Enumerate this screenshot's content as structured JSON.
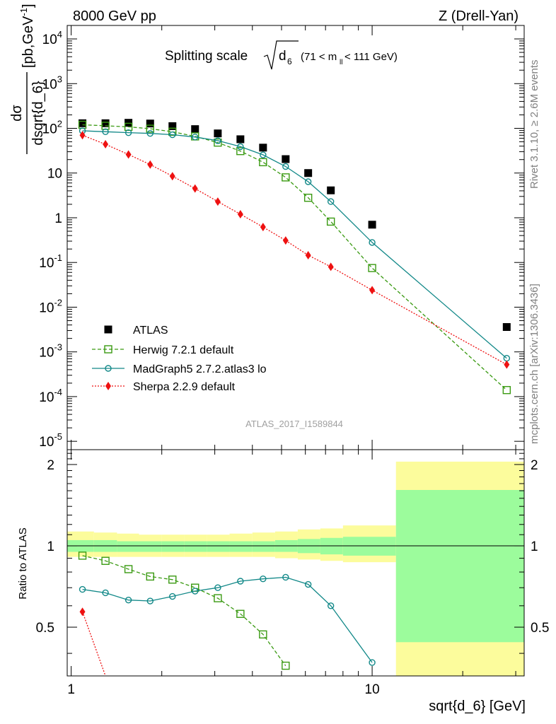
{
  "header": {
    "left": "8000 GeV pp",
    "right": "Z (Drell-Yan)"
  },
  "side_text": {
    "rivet": "Rivet 3.1.10, ≥ 2.6M events",
    "mcplots": "mcplots.cern.ch [arXiv:1306.3436]"
  },
  "chart_data": [
    {
      "type": "scatter",
      "title_main": "Splitting scale",
      "title_sqrt": "d",
      "title_sqrt_sub": "6",
      "title_range_pre": "(71 < m",
      "title_range_sub": "ll",
      "title_range_post": " < 111 GeV)",
      "watermark": "ATLAS_2017_I1589844",
      "ylabel_num": "dσ",
      "ylabel_den": "dsqrt{d_6}",
      "ylabel_unit": "[pb,GeV",
      "ylabel_unit_sup": "-1",
      "ylabel_unit_close": "]",
      "xscale": "log",
      "yscale": "log",
      "xlim": [
        0.97,
        32
      ],
      "ylim": [
        6.5e-06,
        20000
      ],
      "yticks": [
        {
          "v": 1e-05,
          "base": "10",
          "exp": "-5"
        },
        {
          "v": 0.0001,
          "base": "10",
          "exp": "-4"
        },
        {
          "v": 0.001,
          "base": "10",
          "exp": "-3"
        },
        {
          "v": 0.01,
          "base": "10",
          "exp": "-2"
        },
        {
          "v": 0.1,
          "base": "10",
          "exp": "-1"
        },
        {
          "v": 1,
          "base": "1",
          "exp": ""
        },
        {
          "v": 10,
          "base": "10",
          "exp": ""
        },
        {
          "v": 100,
          "base": "10",
          "exp": "2"
        },
        {
          "v": 1000,
          "base": "10",
          "exp": "3"
        },
        {
          "v": 10000,
          "base": "10",
          "exp": "4"
        }
      ],
      "legend_position": "center-left",
      "series": [
        {
          "name": "ATLAS",
          "color": "#000000",
          "marker": "filled-square",
          "x": [
            1.09,
            1.3,
            1.55,
            1.83,
            2.17,
            2.58,
            3.07,
            3.65,
            4.34,
            5.16,
            6.13,
            7.29,
            10.0,
            28.0
          ],
          "y": [
            130,
            130,
            133,
            128,
            112,
            96,
            77,
            57,
            37,
            20.5,
            10,
            4.1,
            0.7,
            0.0036
          ]
        },
        {
          "name": "Herwig 7.2.1 default",
          "color": "#3a9a12",
          "marker": "open-square",
          "line": "dashed",
          "x": [
            1.09,
            1.3,
            1.55,
            1.83,
            2.17,
            2.58,
            3.07,
            3.65,
            4.34,
            5.16,
            6.13,
            7.29,
            10.0,
            28.0
          ],
          "y": [
            120,
            114,
            108,
            98,
            84,
            66,
            48,
            31,
            17.5,
            8,
            2.8,
            0.82,
            0.075,
            0.00014
          ]
        },
        {
          "name": "MadGraph5 2.7.2.atlas3 lo",
          "color": "#118888",
          "marker": "open-circle",
          "line": "solid",
          "x": [
            1.09,
            1.3,
            1.55,
            1.83,
            2.17,
            2.58,
            3.07,
            3.65,
            4.34,
            5.16,
            6.13,
            7.29,
            10.0,
            28.0
          ],
          "y": [
            88,
            84,
            80,
            77,
            72,
            64,
            53,
            39,
            25.5,
            14,
            6.4,
            2.3,
            0.28,
            0.00072
          ]
        },
        {
          "name": "Sherpa 2.2.9 default",
          "color": "#ee1111",
          "marker": "filled-diamond",
          "line": "dotted",
          "x": [
            1.09,
            1.3,
            1.55,
            1.83,
            2.17,
            2.58,
            3.07,
            3.65,
            4.34,
            5.16,
            6.13,
            7.29,
            10.0,
            28.0
          ],
          "y": [
            70,
            44,
            26,
            15.5,
            8.5,
            4.5,
            2.3,
            1.2,
            0.62,
            0.31,
            0.145,
            0.08,
            0.024,
            0.00052
          ]
        }
      ]
    },
    {
      "type": "line",
      "ylabel": "Ratio to ATLAS",
      "xlabel": "sqrt{d_6} [GeV]",
      "xscale": "log",
      "xlim": [
        0.97,
        32
      ],
      "ylim": [
        0.33,
        2.27
      ],
      "yticks": [
        0.5,
        1,
        2
      ],
      "yticklabels": [
        "0.5",
        "1",
        "2"
      ],
      "xticks": [
        1,
        10
      ],
      "xticklabels": [
        "1",
        "10"
      ],
      "reference": 1,
      "bands": {
        "x_edges": [
          0.97,
          1.19,
          1.42,
          1.68,
          2.0,
          2.38,
          2.83,
          3.36,
          4.0,
          4.76,
          5.66,
          6.73,
          8.0,
          12.0,
          32.0
        ],
        "stat_lo": [
          0.95,
          0.95,
          0.95,
          0.95,
          0.95,
          0.95,
          0.95,
          0.95,
          0.95,
          0.95,
          0.94,
          0.93,
          0.92,
          0.44
        ],
        "stat_hi": [
          1.05,
          1.05,
          1.04,
          1.04,
          1.04,
          1.04,
          1.04,
          1.04,
          1.04,
          1.05,
          1.06,
          1.07,
          1.08,
          1.61
        ],
        "tot_lo": [
          0.91,
          0.91,
          0.91,
          0.91,
          0.91,
          0.91,
          0.91,
          0.91,
          0.91,
          0.9,
          0.89,
          0.88,
          0.87,
          0.33
        ],
        "tot_hi": [
          1.13,
          1.12,
          1.11,
          1.1,
          1.1,
          1.1,
          1.1,
          1.11,
          1.12,
          1.13,
          1.15,
          1.16,
          1.19,
          2.05
        ],
        "stat_color": "#9cfc9c",
        "tot_color": "#fcfc9c"
      },
      "series": [
        {
          "name": "Herwig 7.2.1 default",
          "color": "#3a9a12",
          "marker": "open-square",
          "line": "dashed",
          "x": [
            1.09,
            1.3,
            1.55,
            1.83,
            2.17,
            2.58,
            3.07,
            3.65,
            4.34,
            5.16
          ],
          "y": [
            0.92,
            0.88,
            0.82,
            0.77,
            0.75,
            0.7,
            0.64,
            0.56,
            0.47,
            0.36
          ]
        },
        {
          "name": "MadGraph5 2.7.2.atlas3 lo",
          "color": "#118888",
          "marker": "open-circle",
          "line": "solid",
          "x": [
            1.09,
            1.3,
            1.55,
            1.83,
            2.17,
            2.58,
            3.07,
            3.65,
            4.34,
            5.16,
            6.13,
            7.29,
            10.0
          ],
          "y": [
            0.69,
            0.67,
            0.63,
            0.625,
            0.65,
            0.68,
            0.7,
            0.74,
            0.755,
            0.765,
            0.72,
            0.6,
            0.37
          ]
        },
        {
          "name": "Sherpa 2.2.9 default",
          "color": "#ee1111",
          "marker": "filled-diamond",
          "line": "dotted",
          "x": [
            1.09,
            1.3
          ],
          "y": [
            0.57,
            0.33
          ]
        }
      ]
    }
  ]
}
